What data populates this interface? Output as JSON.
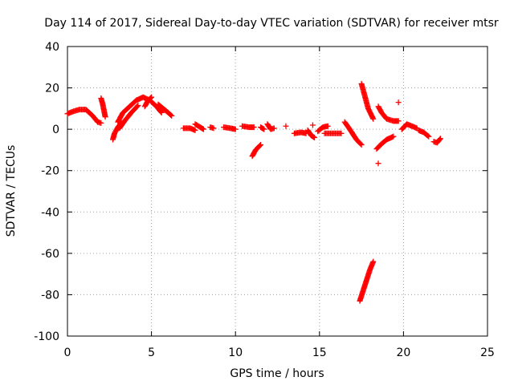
{
  "chart_data": {
    "type": "scatter",
    "title": "Day 114 of 2017, Sidereal Day-to-day VTEC variation (SDTVAR) for receiver mtsr",
    "xlabel": "GPS time / hours",
    "ylabel": "SDTVAR / TECUs",
    "xlim": [
      0,
      25
    ],
    "ylim": [
      -100,
      40
    ],
    "xticks": [
      0,
      5,
      10,
      15,
      20,
      25
    ],
    "yticks": [
      40,
      20,
      0,
      -20,
      -40,
      -60,
      -80,
      -100
    ],
    "grid": true,
    "legend": "none",
    "marker": "+",
    "series": [
      {
        "name": "SDTVAR",
        "color": "#ff0000",
        "arcs": [
          [
            [
              0.0,
              7.5
            ],
            [
              0.3,
              8.5
            ],
            [
              0.7,
              9.5
            ],
            [
              1.1,
              9.5
            ],
            [
              1.5,
              6.5
            ],
            [
              1.8,
              3.5
            ],
            [
              2.0,
              3.0
            ]
          ],
          [
            [
              2.0,
              15.0
            ],
            [
              2.1,
              12.0
            ],
            [
              2.2,
              8.0
            ],
            [
              2.25,
              6.0
            ]
          ],
          [
            [
              2.7,
              -5.0
            ],
            [
              2.8,
              -2.0
            ],
            [
              3.0,
              1.0
            ],
            [
              3.2,
              3.0
            ]
          ],
          [
            [
              3.0,
              3.5
            ],
            [
              3.3,
              8.0
            ],
            [
              3.7,
              11.0
            ],
            [
              4.1,
              14.0
            ],
            [
              4.5,
              15.5
            ],
            [
              4.9,
              14.0
            ],
            [
              5.3,
              11.0
            ],
            [
              5.6,
              8.0
            ]
          ],
          [
            [
              3.1,
              0.5
            ],
            [
              3.4,
              4.0
            ],
            [
              3.8,
              8.0
            ],
            [
              4.2,
              11.5
            ]
          ],
          [
            [
              4.6,
              11.0
            ],
            [
              4.8,
              14.0
            ],
            [
              5.0,
              15.5
            ]
          ],
          [
            [
              5.4,
              12.0
            ],
            [
              5.7,
              10.0
            ],
            [
              6.0,
              8.0
            ],
            [
              6.2,
              6.5
            ]
          ],
          [
            [
              6.9,
              0.5
            ],
            [
              7.3,
              0.5
            ],
            [
              7.6,
              -0.5
            ]
          ],
          [
            [
              7.6,
              2.5
            ],
            [
              7.9,
              1.0
            ],
            [
              8.1,
              0.0
            ]
          ],
          [
            [
              8.5,
              1.0
            ],
            [
              8.7,
              0.5
            ]
          ],
          [
            [
              9.3,
              1.0
            ],
            [
              9.7,
              0.5
            ],
            [
              10.0,
              0.0
            ]
          ],
          [
            [
              10.4,
              1.5
            ],
            [
              10.8,
              1.0
            ],
            [
              11.1,
              1.0
            ]
          ],
          [
            [
              11.0,
              -13.0
            ],
            [
              11.2,
              -10.0
            ],
            [
              11.5,
              -7.5
            ]
          ],
          [
            [
              11.5,
              1.0
            ],
            [
              11.7,
              0.0
            ]
          ],
          [
            [
              11.9,
              2.5
            ],
            [
              12.1,
              0.0
            ],
            [
              12.3,
              0.5
            ]
          ],
          [
            [
              13.0,
              1.5
            ]
          ],
          [
            [
              13.5,
              -2.0
            ],
            [
              13.9,
              -1.5
            ],
            [
              14.2,
              -2.0
            ]
          ],
          [
            [
              14.3,
              -0.5
            ],
            [
              14.5,
              -3.0
            ],
            [
              14.7,
              -4.0
            ]
          ],
          [
            [
              14.6,
              2.0
            ]
          ],
          [
            [
              14.9,
              -1.0
            ],
            [
              15.2,
              1.0
            ],
            [
              15.5,
              1.5
            ]
          ],
          [
            [
              15.3,
              -2.0
            ],
            [
              15.8,
              -2.0
            ],
            [
              16.3,
              -2.0
            ]
          ],
          [
            [
              16.5,
              3.5
            ],
            [
              16.8,
              0.0
            ],
            [
              17.2,
              -5.0
            ],
            [
              17.5,
              -7.5
            ]
          ],
          [
            [
              17.5,
              22.0
            ],
            [
              17.7,
              16.0
            ],
            [
              17.9,
              10.0
            ],
            [
              18.2,
              5.0
            ]
          ],
          [
            [
              17.4,
              -83.0
            ],
            [
              17.6,
              -78.0
            ],
            [
              17.8,
              -73.0
            ],
            [
              18.0,
              -68.0
            ],
            [
              18.2,
              -64.0
            ]
          ],
          [
            [
              18.5,
              11.0
            ],
            [
              18.7,
              8.0
            ],
            [
              19.0,
              5.0
            ],
            [
              19.4,
              4.0
            ],
            [
              19.7,
              4.0
            ]
          ],
          [
            [
              18.4,
              -9.5
            ],
            [
              18.7,
              -7.0
            ],
            [
              19.0,
              -5.0
            ],
            [
              19.4,
              -3.5
            ]
          ],
          [
            [
              18.5,
              -16.5
            ]
          ],
          [
            [
              19.7,
              13.0
            ]
          ],
          [
            [
              19.9,
              0.0
            ],
            [
              20.2,
              2.5
            ],
            [
              20.5,
              1.5
            ],
            [
              20.8,
              0.5
            ]
          ],
          [
            [
              20.9,
              -0.5
            ],
            [
              21.2,
              -1.5
            ],
            [
              21.5,
              -3.5
            ]
          ],
          [
            [
              21.8,
              -6.0
            ],
            [
              22.0,
              -6.5
            ],
            [
              22.2,
              -4.5
            ]
          ]
        ]
      }
    ]
  }
}
